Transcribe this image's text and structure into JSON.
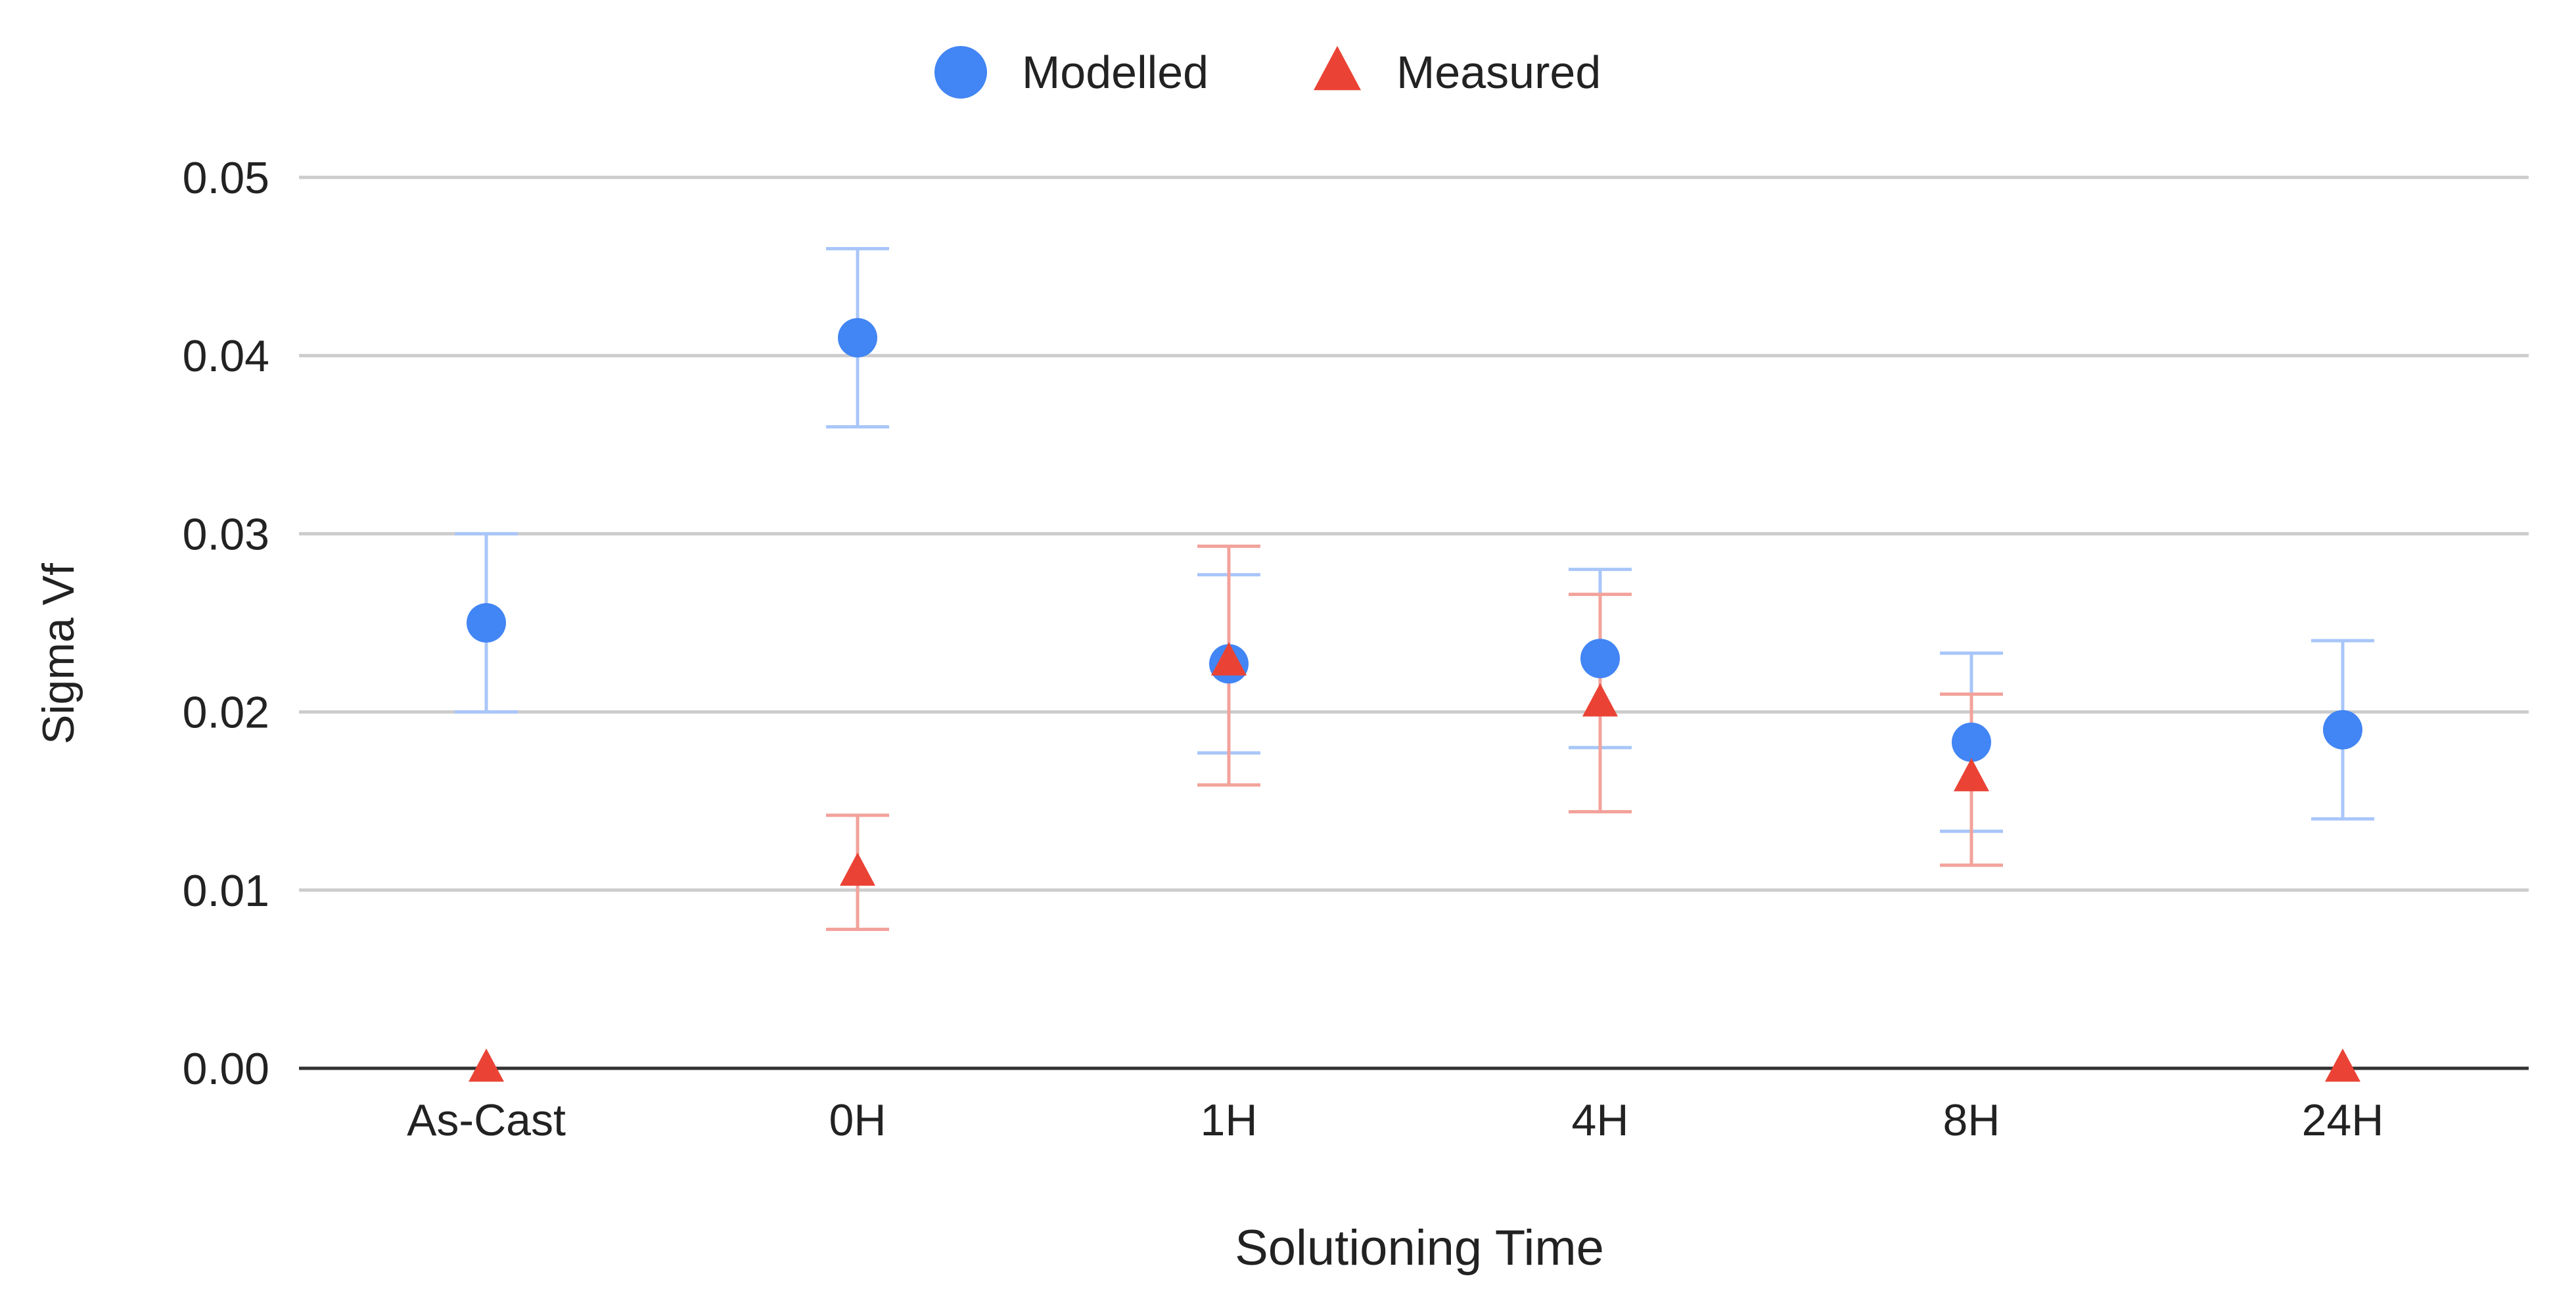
{
  "chart_data": {
    "type": "scatter",
    "title": "",
    "xlabel": "Solutioning Time",
    "ylabel": "Sigma Vf",
    "categories": [
      "As-Cast",
      "0H",
      "1H",
      "4H",
      "8H",
      "24H"
    ],
    "ylim": [
      0,
      0.05
    ],
    "yticks": [
      "0.00",
      "0.01",
      "0.02",
      "0.03",
      "0.04",
      "0.05"
    ],
    "grid": true,
    "legend_position": "top-center",
    "series": [
      {
        "name": "Modelled",
        "marker": "circle",
        "color": "#4285F4",
        "error_color": "#A9C6F9",
        "values": [
          0.025,
          0.041,
          0.0227,
          0.023,
          0.0183,
          0.019
        ],
        "err_low": [
          0.02,
          0.036,
          0.0177,
          0.018,
          0.0133,
          0.014
        ],
        "err_high": [
          0.03,
          0.046,
          0.0277,
          0.028,
          0.0233,
          0.024
        ]
      },
      {
        "name": "Measured",
        "marker": "triangle",
        "color": "#EA4335",
        "error_color": "#F2A29B",
        "values": [
          0.0,
          0.011,
          0.0228,
          0.0205,
          0.0163,
          0.0
        ],
        "err_low": [
          null,
          0.0078,
          0.0159,
          0.0144,
          0.0114,
          null
        ],
        "err_high": [
          null,
          0.0142,
          0.0293,
          0.0266,
          0.021,
          null
        ]
      }
    ]
  }
}
